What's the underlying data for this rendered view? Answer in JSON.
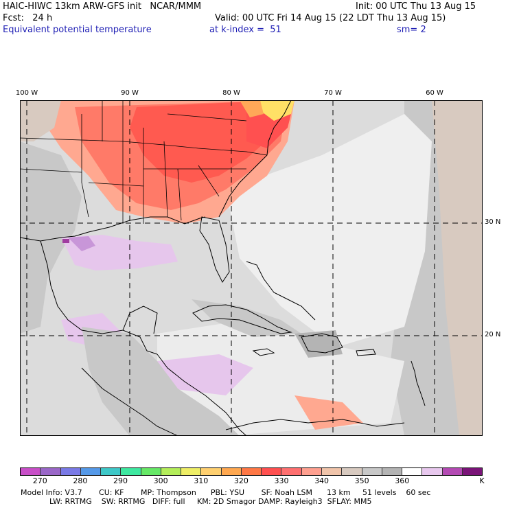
{
  "header": {
    "model": "HAIC-HIWC 13km ARW-GFS init   NCAR/MMM",
    "init": "Init: 00 UTC Thu 13 Aug 15",
    "fcst": "Fcst:   24 h",
    "valid": "Valid: 00 UTC Fri 14 Aug 15 (22 LDT Thu 13 Aug 15)",
    "field": "Equivalent potential temperature",
    "level": "at k-index =  51",
    "smooth": "sm= 2"
  },
  "lon_labels": [
    "100 W",
    "90 W",
    "80 W",
    "70 W",
    "60 W"
  ],
  "lat_labels": [
    "30 N",
    "20 N"
  ],
  "colorbar": {
    "colors": [
      "#c84fc8",
      "#9a67c8",
      "#7a7ae6",
      "#5599e8",
      "#3ec8c8",
      "#3ee8a0",
      "#66e866",
      "#b4ee5a",
      "#eeee66",
      "#ffd070",
      "#ffa850",
      "#ff7846",
      "#ff5050",
      "#ff7070",
      "#ffa090",
      "#f0c4aa",
      "#d8cac0",
      "#c8c8c8",
      "#b4b4b4",
      "#ffffff",
      "#e8c8ee",
      "#b44ab4",
      "#7a1478"
    ],
    "ticks": [
      "270",
      "280",
      "290",
      "300",
      "310",
      "320",
      "330",
      "340",
      "350",
      "360"
    ],
    "unit": "K"
  },
  "footer": {
    "line1": "Model Info: V3.7       CU: KF       MP: Thompson      PBL: YSU       SF: Noah LSM      13 km     51 levels    60 sec",
    "line2": "            LW: RRTMG    SW: RRTMG   DIFF: full     KM: 2D Smagor DAMP: Rayleigh3  SFLAY: MM5"
  },
  "map_colors": {
    "hot": "#ff5a50",
    "warm": "#ff7a68",
    "salmon": "#ffa890",
    "tan": "#e6c2b0",
    "gray": "#c8c8c8",
    "lightgray": "#dcdcdc",
    "white": "#f2f2f2",
    "lilac": "#e6c6ec",
    "purple": "#c896d8",
    "yellow": "#ffe066",
    "orange": "#ffa858",
    "darkmag": "#a03ca0"
  }
}
